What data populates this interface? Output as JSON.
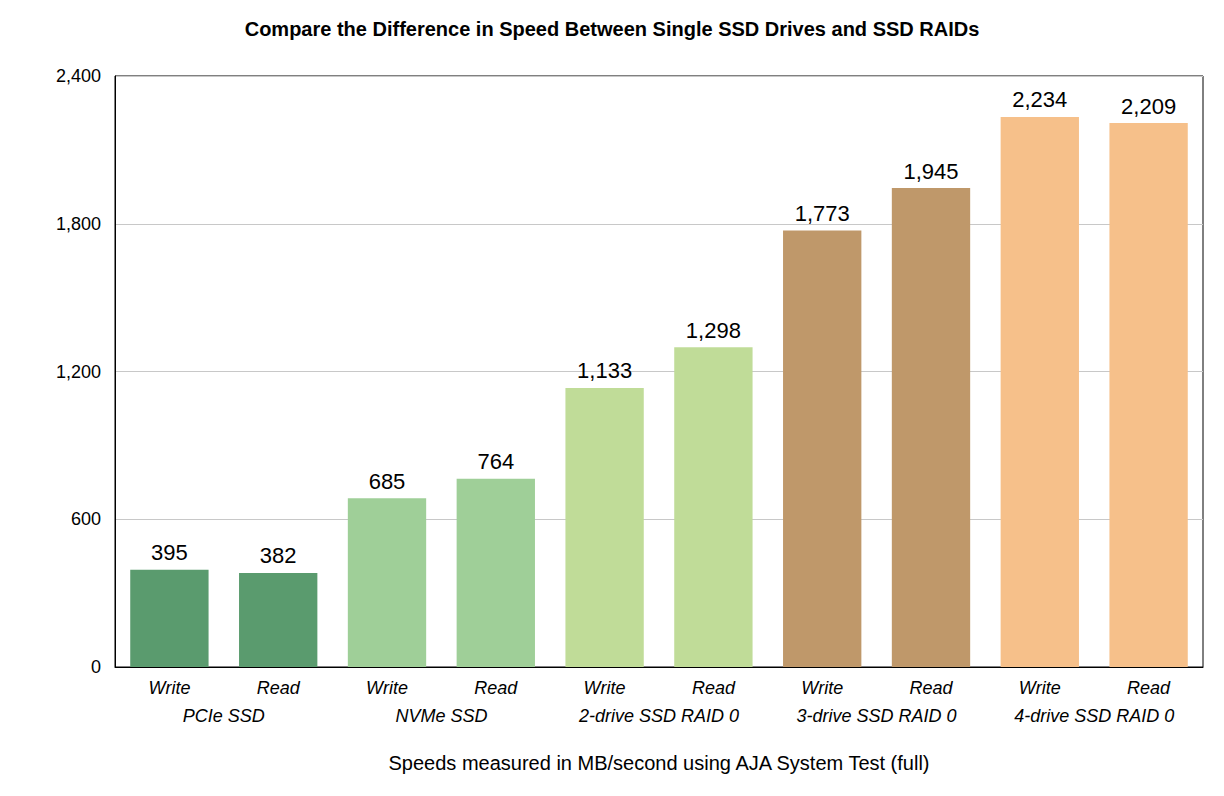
{
  "chart_data": {
    "type": "bar",
    "title": "Compare the Difference in Speed Between Single SSD Drives and SSD RAIDs",
    "x_label": "Speeds measured in MB/second using AJA System Test (full)",
    "categories": [
      "Write",
      "Read",
      "Write",
      "Read",
      "Write",
      "Read",
      "Write",
      "Read",
      "Write",
      "Read"
    ],
    "group_labels": [
      "PCIe SSD",
      "NVMe SSD",
      "2-drive SSD RAID 0",
      "3-drive SSD RAID 0",
      "4-drive SSD RAID 0"
    ],
    "values": [
      395,
      382,
      685,
      764,
      1133,
      1298,
      1773,
      1945,
      2234,
      2209
    ],
    "value_labels": [
      "395",
      "382",
      "685",
      "764",
      "1,133",
      "1,298",
      "1,773",
      "1,945",
      "2,234",
      "2,209"
    ],
    "colors": [
      "#5a9b6e",
      "#5a9b6e",
      "#9fcf98",
      "#9fcf98",
      "#c0dc98",
      "#c0dc98",
      "#bf986a",
      "#bf986a",
      "#f6c08a",
      "#f6c08a"
    ],
    "ylim": [
      0,
      2400
    ],
    "yticks": [
      0,
      600,
      {
        "value": 1200,
        "label": "1,200"
      },
      {
        "value": 1800,
        "label": "1,800"
      },
      {
        "value": 2400,
        "label": "2,400"
      }
    ],
    "grid": true,
    "data_labels": true
  }
}
